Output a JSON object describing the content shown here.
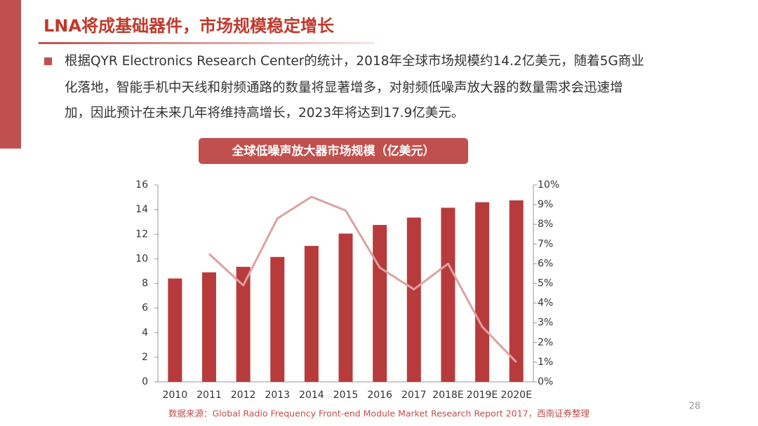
{
  "header": {
    "title": "LNA将成基础器件，市场规模稳定增长"
  },
  "bullet": {
    "lines": [
      "根据QYR Electronics Research Center的统计，2018年全球市场规模约14.2亿美元，随着5G商业",
      "化落地，智能手机中天线和射频通路的数量将显著增多，对射频低噪声放大器的数量需求会迅速增",
      "加，因此预计在未来几年将维持高增长，2023年将达到17.9亿美元。"
    ]
  },
  "chart_data": {
    "type": "bar",
    "title": "全球低噪声放大器市场规模（亿美元）",
    "categories": [
      "2010",
      "2011",
      "2012",
      "2013",
      "2014",
      "2015",
      "2016",
      "2017",
      "2018E",
      "2019E",
      "2020E"
    ],
    "series": [
      {
        "type": "bar",
        "color": "#b83b3c",
        "values": [
          8.4,
          8.9,
          9.35,
          10.15,
          11.05,
          12.05,
          12.75,
          13.35,
          14.15,
          14.6,
          14.75
        ]
      },
      {
        "type": "line",
        "axis": "y2",
        "color": "#dfa0a0",
        "values": [
          null,
          6.5,
          4.9,
          8.3,
          9.4,
          8.7,
          5.8,
          4.7,
          6.0,
          2.8,
          1.0
        ]
      }
    ],
    "ylim": [
      0,
      16
    ],
    "yticks": [
      0,
      2,
      4,
      6,
      8,
      10,
      12,
      14,
      16
    ],
    "y2lim": [
      0,
      10
    ],
    "y2ticks": [
      {
        "value": 0,
        "label": "0%"
      },
      {
        "value": 1,
        "label": "1%"
      },
      {
        "value": 2,
        "label": "2%"
      },
      {
        "value": 3,
        "label": "3%"
      },
      {
        "value": 4,
        "label": "4%"
      },
      {
        "value": 5,
        "label": "5%"
      },
      {
        "value": 6,
        "label": "6%"
      },
      {
        "value": 7,
        "label": "7%"
      },
      {
        "value": 8,
        "label": "8%"
      },
      {
        "value": 9,
        "label": "9%"
      },
      {
        "value": 10,
        "label": "10%"
      }
    ],
    "source": "数据来源：Global Radio Frequency Front-end Module Market Research Report 2017，西南证券整理"
  },
  "page_number": "28"
}
